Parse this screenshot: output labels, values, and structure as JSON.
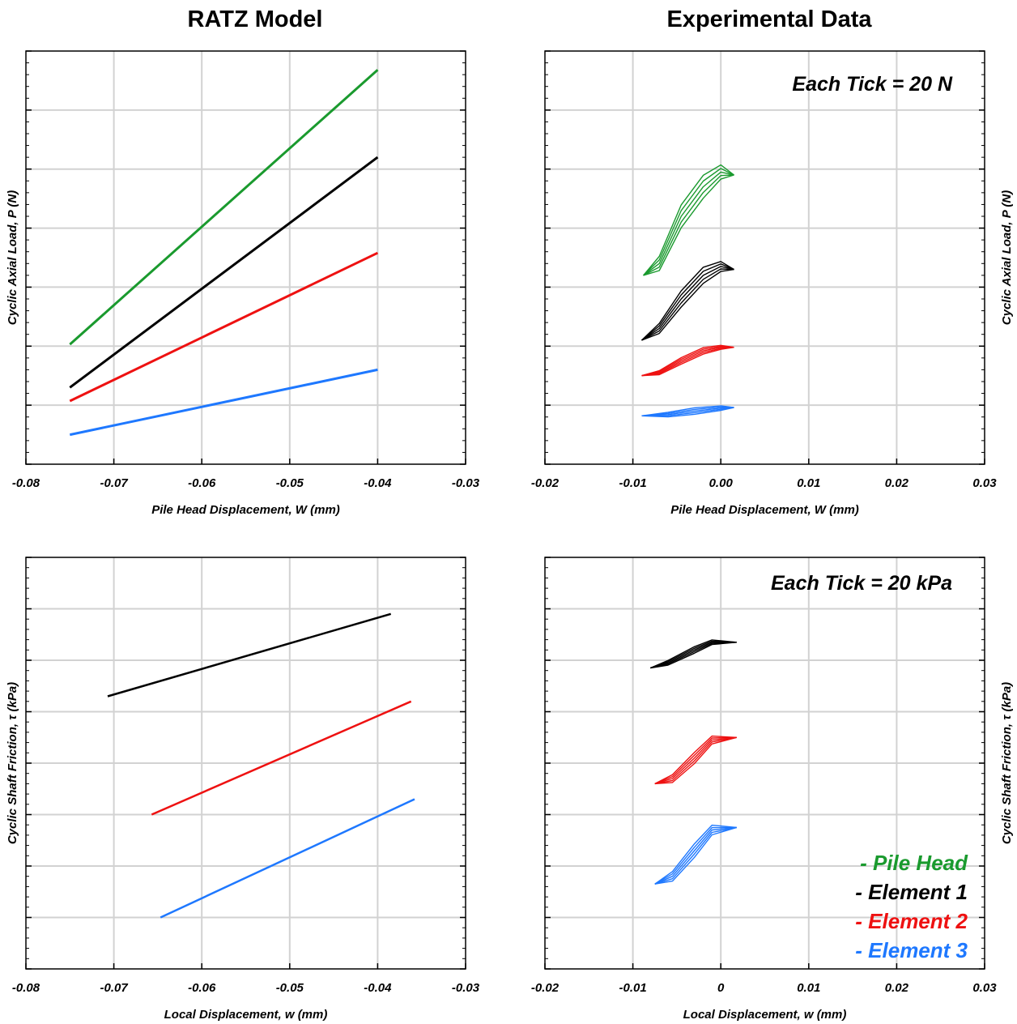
{
  "titles": {
    "left": "RATZ Model",
    "right": "Experimental Data"
  },
  "colors": {
    "green": "#1a9a2e",
    "black": "#000000",
    "red": "#ee1111",
    "blue": "#1e78ff",
    "grid": "#d2d2d2"
  },
  "legend": [
    {
      "label": "- Pile Head",
      "color": "#1a9a2e"
    },
    {
      "label": "- Element 1",
      "color": "#000000"
    },
    {
      "label": "- Element 2",
      "color": "#ee1111"
    },
    {
      "label": "- Element 3",
      "color": "#1e78ff"
    }
  ],
  "chart_data": [
    {
      "id": "ratz-load",
      "type": "line",
      "title": "RATZ Model",
      "xlabel": "Pile Head Displacement, W (mm)",
      "ylabel": "Cyclic Axial Load, P (N)",
      "xlim": [
        -0.08,
        -0.03
      ],
      "xticks": [
        -0.08,
        -0.07,
        -0.06,
        -0.05,
        -0.04,
        -0.03
      ],
      "xtick_labels": [
        "-0.08",
        "-0.07",
        "-0.06",
        "-0.05",
        "-0.04",
        "-0.03"
      ],
      "ylim": [
        0,
        7
      ],
      "grid": true,
      "series": [
        {
          "color": "#1a9a2e",
          "x": [
            -0.075,
            -0.04
          ],
          "y": [
            2.03,
            6.68
          ]
        },
        {
          "color": "#000000",
          "x": [
            -0.075,
            -0.04
          ],
          "y": [
            1.3,
            5.2
          ]
        },
        {
          "color": "#ee1111",
          "x": [
            -0.075,
            -0.04
          ],
          "y": [
            1.07,
            3.58
          ]
        },
        {
          "color": "#1e78ff",
          "x": [
            -0.075,
            -0.04
          ],
          "y": [
            0.5,
            1.6
          ]
        }
      ]
    },
    {
      "id": "exp-load",
      "type": "line",
      "title": "Experimental Data",
      "xlabel": "Pile Head Displacement, W (mm)",
      "ylabel": "Cyclic Axial Load, P (N)",
      "note": "Each Tick = 20 N",
      "xlim": [
        -0.02,
        0.03
      ],
      "xticks": [
        -0.02,
        -0.01,
        0.0,
        0.01,
        0.02,
        0.03
      ],
      "xtick_labels": [
        "-0.02",
        "-0.01",
        "0.00",
        "0.01",
        "0.02",
        "0.03"
      ],
      "ylim": [
        0,
        7
      ],
      "grid": true,
      "series": [
        {
          "color": "#1a9a2e",
          "x": [
            -0.0088,
            -0.007,
            -0.0045,
            -0.002,
            0.0,
            0.0015
          ],
          "y": [
            3.2,
            3.4,
            4.2,
            4.7,
            4.95,
            4.9
          ]
        },
        {
          "color": "#000000",
          "x": [
            -0.009,
            -0.007,
            -0.0045,
            -0.002,
            0.0,
            0.0015
          ],
          "y": [
            2.1,
            2.3,
            2.8,
            3.2,
            3.35,
            3.3
          ]
        },
        {
          "color": "#ee1111",
          "x": [
            -0.009,
            -0.007,
            -0.0045,
            -0.002,
            0.0,
            0.0015
          ],
          "y": [
            1.5,
            1.55,
            1.75,
            1.92,
            1.98,
            1.98
          ]
        },
        {
          "color": "#1e78ff",
          "x": [
            -0.009,
            -0.006,
            -0.003,
            0.0,
            0.0015
          ],
          "y": [
            0.82,
            0.84,
            0.9,
            0.95,
            0.96
          ]
        }
      ]
    },
    {
      "id": "ratz-friction",
      "type": "line",
      "title": "RATZ Model",
      "xlabel": "Local Displacement, w (mm)",
      "ylabel": "Cyclic Shaft Friction, τ (kPa)",
      "xlim": [
        -0.08,
        -0.03
      ],
      "xticks": [
        -0.08,
        -0.07,
        -0.06,
        -0.05,
        -0.04,
        -0.03
      ],
      "xtick_labels": [
        "-0.08",
        "-0.07",
        "-0.06",
        "-0.05",
        "-0.04",
        "-0.03"
      ],
      "ylim": [
        0,
        8
      ],
      "grid": true,
      "series": [
        {
          "color": "#000000",
          "x": [
            -0.0707,
            -0.0385
          ],
          "y": [
            5.3,
            6.9
          ]
        },
        {
          "color": "#ee1111",
          "x": [
            -0.0657,
            -0.0362
          ],
          "y": [
            3.0,
            5.2
          ]
        },
        {
          "color": "#1e78ff",
          "x": [
            -0.0647,
            -0.0358
          ],
          "y": [
            1.0,
            3.3
          ]
        }
      ]
    },
    {
      "id": "exp-friction",
      "type": "line",
      "title": "Experimental Data",
      "xlabel": "Local Displacement, w (mm)",
      "ylabel": "Cyclic Shaft Friction, τ (kPa)",
      "note": "Each Tick = 20 kPa",
      "xlim": [
        -0.02,
        0.03
      ],
      "xticks": [
        -0.02,
        -0.01,
        0.0,
        0.01,
        0.02,
        0.03
      ],
      "xtick_labels": [
        "-0.02",
        "-0.01",
        "0",
        "0.01",
        "0.02",
        "0.03"
      ],
      "ylim": [
        0,
        8
      ],
      "grid": true,
      "series": [
        {
          "color": "#000000",
          "x": [
            -0.008,
            -0.006,
            -0.003,
            -0.001,
            0.0018
          ],
          "y": [
            5.85,
            5.95,
            6.2,
            6.35,
            6.35
          ]
        },
        {
          "color": "#ee1111",
          "x": [
            -0.0075,
            -0.0055,
            -0.003,
            -0.001,
            0.0018
          ],
          "y": [
            3.6,
            3.7,
            4.1,
            4.45,
            4.5
          ]
        },
        {
          "color": "#1e78ff",
          "x": [
            -0.0075,
            -0.0055,
            -0.003,
            -0.001,
            0.0018
          ],
          "y": [
            1.65,
            1.8,
            2.3,
            2.7,
            2.75
          ]
        }
      ]
    }
  ]
}
